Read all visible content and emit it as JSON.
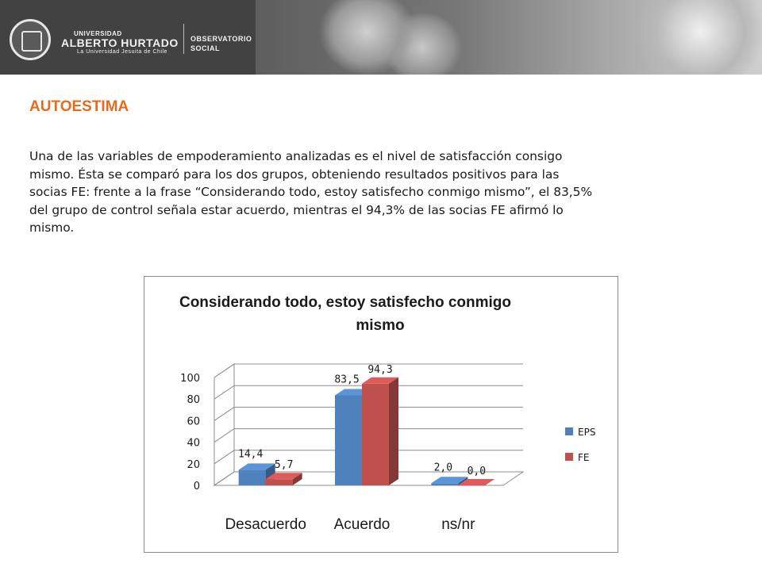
{
  "header": {
    "university_line1": "UNIVERSIDAD",
    "university_line2": "ALBERTO HURTADO",
    "university_line3": "La Universidad Jesuita de Chile",
    "observatory_line1": "OBSERVATORIO",
    "observatory_line2": "SOCIAL"
  },
  "section": {
    "heading": "AUTOESTIMA",
    "body_lines": [
      "Una de las variables de empoderamiento analizadas es el nivel de satisfacción consigo",
      "mismo. Ésta se comparó para los dos grupos, obteniendo resultados positivos para las",
      "socias FE: frente a la frase “Considerando todo, estoy satisfecho conmigo mismo”, el 83,5%",
      "del grupo de control señala estar acuerdo, mientras el 94,3% de las socias FE afirmó lo",
      "mismo."
    ]
  },
  "chart_data": {
    "type": "bar",
    "title_lines": [
      "Considerando todo, estoy satisfecho conmigo",
      "mismo"
    ],
    "categories": [
      "Desacuerdo",
      "Acuerdo",
      "ns/nr"
    ],
    "series": [
      {
        "name": "EPS",
        "values": [
          14.4,
          83.5,
          2.0
        ],
        "labels": [
          "14,4",
          "83,5",
          "2,0"
        ],
        "color": "#4f81bd"
      },
      {
        "name": "FE",
        "values": [
          5.7,
          94.3,
          0.0
        ],
        "labels": [
          "5,7",
          "94,3",
          "0,0"
        ],
        "color": "#c0504d"
      }
    ],
    "ylim": [
      0,
      100
    ],
    "yticks": [
      "0",
      "20",
      "40",
      "60",
      "80",
      "100"
    ],
    "grid": true,
    "style": "3d clustered column",
    "legend_position": "right"
  }
}
